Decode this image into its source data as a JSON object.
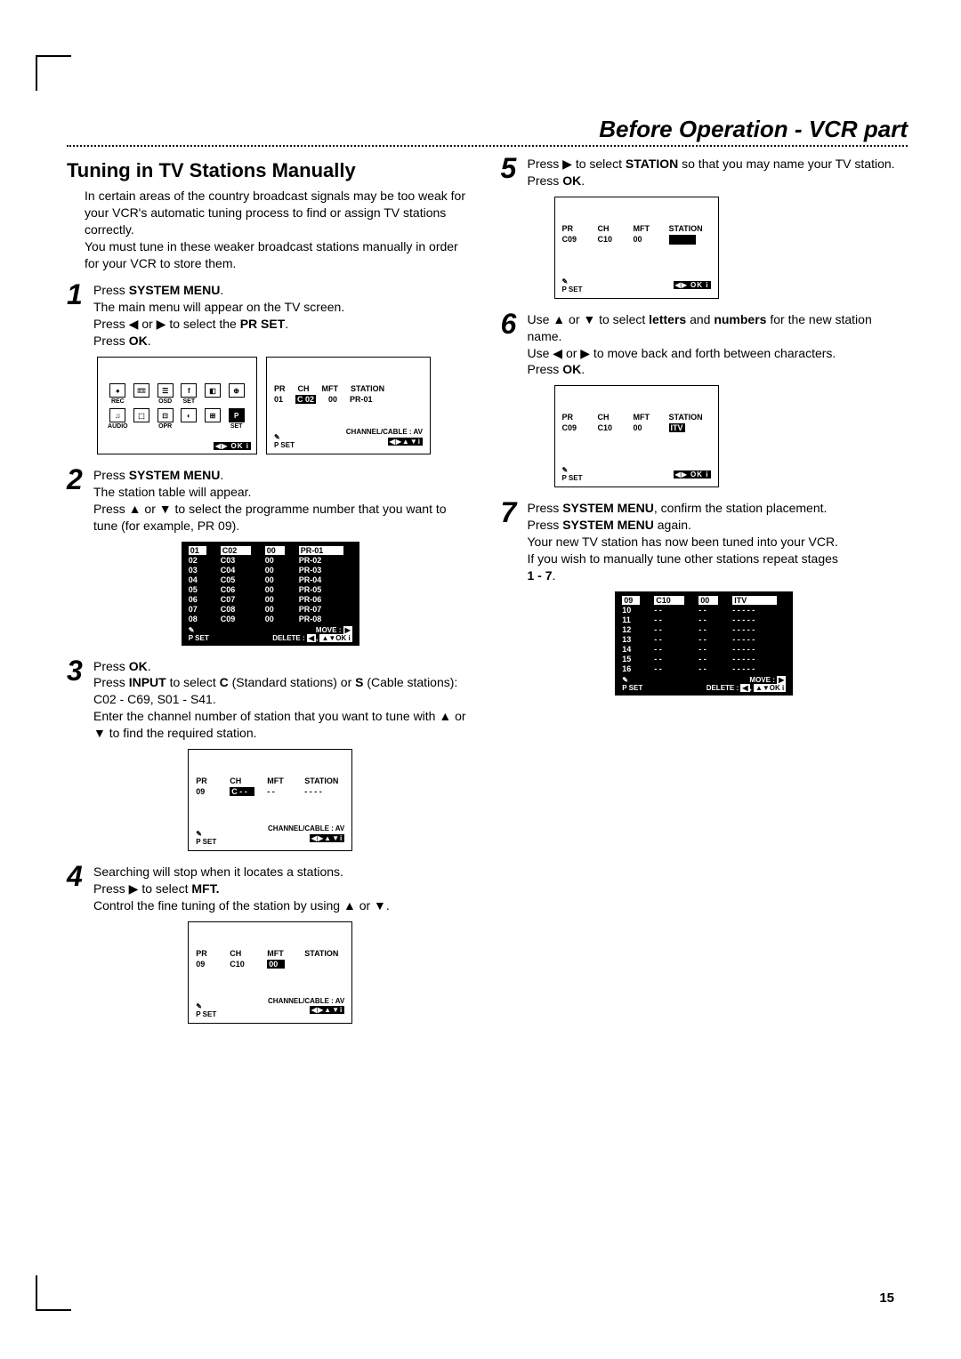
{
  "header": {
    "title": "Before Operation - VCR part"
  },
  "section": {
    "title": "Tuning in TV Stations Manually"
  },
  "intro": "In certain areas of the country broadcast signals may be too weak for your VCR's automatic tuning process to find or assign TV stations correctly.\nYou must tune in these weaker broadcast stations manually in order for your VCR to store them.",
  "steps": {
    "s1": {
      "n": "1",
      "line1_a": "Press ",
      "bold1": "SYSTEM MENU",
      "line1_b": ".",
      "line2": "The main menu will appear on the TV screen.",
      "line3_a": "Press ◀ or ▶ to select the ",
      "bold2": "PR SET",
      "line3_b": ".",
      "line4_a": "Press ",
      "bold3": "OK",
      "line4_b": "."
    },
    "s2": {
      "n": "2",
      "line1_a": "Press ",
      "bold1": "SYSTEM MENU",
      "line1_b": ".",
      "line2": "The station table will appear.",
      "line3": "Press ▲ or ▼ to select the programme number that you want to tune (for example, PR 09)."
    },
    "s3": {
      "n": "3",
      "line1_a": "Press ",
      "bold1": "OK",
      "line1_b": ".",
      "line2_a": "Press ",
      "bold2": "INPUT",
      "line2_b": " to select ",
      "bold3": "C",
      "line2_c": " (Standard stations) or ",
      "bold4": "S",
      "line2_d": " (Cable stations): C02 - C69, S01 - S41.",
      "line3": "Enter the channel number of station that you want to tune with ▲ or ▼  to find the required station."
    },
    "s4": {
      "n": "4",
      "line1": "Searching will stop when it locates a stations.",
      "line2_a": "Press ▶ to select ",
      "bold1": "MFT.",
      "line3": "Control the fine tuning of the station by using ▲ or ▼."
    },
    "s5": {
      "n": "5",
      "line1_a": "Press ▶ to select ",
      "bold1": "STATION",
      "line1_b": " so that you may name your TV station.",
      "line2_a": "Press ",
      "bold2": "OK",
      "line2_b": "."
    },
    "s6": {
      "n": "6",
      "line1_a": "Use ▲ or ▼ to select ",
      "bold1": "letters",
      "line1_b": " and ",
      "bold2": "numbers",
      "line1_c": " for the new station name.",
      "line2": "Use ◀ or ▶ to move back and forth between characters.",
      "line3_a": "Press ",
      "bold3": "OK",
      "line3_b": "."
    },
    "s7": {
      "n": "7",
      "line1_a": "Press ",
      "bold1": "SYSTEM MENU",
      "line1_b": ", confirm the station placement.",
      "line2_a": "Press ",
      "bold2": "SYSTEM MENU",
      "line2_b": " again.",
      "line3": "Your new TV station has now been tuned into your VCR.",
      "line4_a": "If you wish to manually tune other stations repeat stages",
      "bold3": "1 - 7",
      "line4_b": "."
    }
  },
  "osd": {
    "hdr": {
      "pr": "PR",
      "ch": "CH",
      "mft": "MFT",
      "station": "STATION"
    },
    "step1": {
      "pr": "01",
      "ch": "C 02",
      "mft": "00",
      "station": "PR-01",
      "sub": "CHANNEL/CABLE : AV",
      "pset": "P SET",
      "nav": "◀▶▲▼i"
    },
    "menu_icons": [
      "REC",
      "R/R/W",
      "OSD",
      "SET",
      "ADT",
      "16:9 4:3",
      "AUDIO",
      "DECODER",
      "OPR",
      "",
      "",
      "P SET"
    ],
    "menu_nav": "◀▶ OK i",
    "step3": {
      "pr": "09",
      "ch": "C - -",
      "mft": "- -",
      "station": "- - - -",
      "sub": "CHANNEL/CABLE : AV"
    },
    "step4": {
      "pr": "09",
      "ch": "C10",
      "mft": "00",
      "station": "",
      "sub": "CHANNEL/CABLE : AV"
    },
    "step5": {
      "pr": "C09",
      "ch": "C10",
      "mft": "00",
      "station_box": "",
      "nav": "◀▶ OK i"
    },
    "step6": {
      "pr": "C09",
      "ch": "C10",
      "mft": "00",
      "station_box": "ITV",
      "nav": "◀▶ OK i"
    },
    "move_label": "MOVE :",
    "delete_label": "DELETE :",
    "pset_label": "P SET"
  },
  "table2": {
    "rows": [
      [
        "01",
        "C02",
        "00",
        "PR-01"
      ],
      [
        "02",
        "C03",
        "00",
        "PR-02"
      ],
      [
        "03",
        "C04",
        "00",
        "PR-03"
      ],
      [
        "04",
        "C05",
        "00",
        "PR-04"
      ],
      [
        "05",
        "C06",
        "00",
        "PR-05"
      ],
      [
        "06",
        "C07",
        "00",
        "PR-06"
      ],
      [
        "07",
        "C08",
        "00",
        "PR-07"
      ],
      [
        "08",
        "C09",
        "00",
        "PR-08"
      ]
    ]
  },
  "table7": {
    "rows": [
      [
        "09",
        "C10",
        "00",
        "ITV"
      ],
      [
        "10",
        "- -",
        "- -",
        "- - - - -"
      ],
      [
        "11",
        "- -",
        "- -",
        "- - - - -"
      ],
      [
        "12",
        "- -",
        "- -",
        "- - - - -"
      ],
      [
        "13",
        "- -",
        "- -",
        "- - - - -"
      ],
      [
        "14",
        "- -",
        "- -",
        "- - - - -"
      ],
      [
        "15",
        "- -",
        "- -",
        "- - - - -"
      ],
      [
        "16",
        "- -",
        "- -",
        "- - - - -"
      ]
    ]
  },
  "page_number": "15",
  "styling": {
    "page_bg": "#ffffff",
    "text_color": "#000000",
    "header_fontsize": 26,
    "header_italic": true,
    "header_bold": true,
    "section_title_fontsize": 22,
    "body_fontsize": 14,
    "step_number_fontsize": 32,
    "step_number_italic": true,
    "osd_border": "#000000",
    "osd_fontsize": 9,
    "table_bg": "#000000",
    "table_fg": "#ffffff",
    "highlight_bg": "#000000",
    "highlight_fg": "#ffffff",
    "dotted_border": "2px dotted #000000"
  }
}
